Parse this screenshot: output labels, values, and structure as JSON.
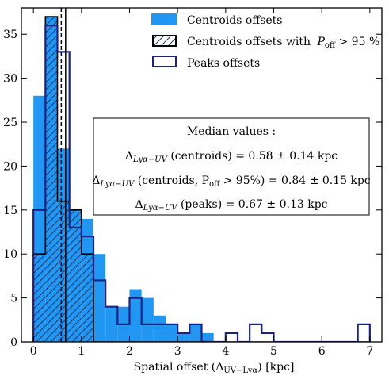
{
  "chart_data": {
    "type": "bar",
    "xlabel": "Spatial offset (Δ",
    "xlabel_sub": "UV−Lyα",
    "xlabel_tail": ") [kpc]",
    "ylabel": "",
    "xlim": [
      -0.25,
      7.25
    ],
    "ylim": [
      0,
      38
    ],
    "xticks": [
      0,
      1,
      2,
      3,
      4,
      5,
      6,
      7
    ],
    "yticks": [
      0,
      5,
      10,
      15,
      20,
      25,
      30,
      35
    ],
    "bin_width": 0.25,
    "bin_starts": [
      0,
      0.25,
      0.5,
      0.75,
      1.0,
      1.25,
      1.5,
      1.75,
      2.0,
      2.25,
      2.5,
      2.75,
      3.0,
      3.25,
      3.5,
      3.75,
      4.0,
      4.25,
      4.5,
      4.75,
      5.0,
      5.25,
      5.5,
      5.75,
      6.0,
      6.25,
      6.5,
      6.75
    ],
    "series": [
      {
        "name": "Centroids offsets",
        "style": "filled",
        "color": "#2196f3",
        "values": [
          28,
          37,
          22,
          15,
          14,
          10,
          4,
          4,
          6,
          5,
          3,
          2,
          1,
          2,
          1,
          0,
          0,
          0,
          0,
          0,
          0,
          0,
          0,
          0,
          0,
          0,
          0,
          0
        ]
      },
      {
        "name": "Centroids offsets with",
        "name_math": "P",
        "name_sub": "off",
        "name_tail": " > 95 %",
        "style": "hatched",
        "color": "#000000",
        "values": [
          10,
          37,
          16,
          15,
          10,
          0,
          0,
          0,
          0,
          0,
          0,
          0,
          0,
          0,
          0,
          0,
          0,
          0,
          0,
          0,
          0,
          0,
          0,
          0,
          0,
          0,
          0,
          0
        ]
      },
      {
        "name": "Peaks offsets",
        "style": "step",
        "color": "#1a237e",
        "values": [
          15,
          36,
          33,
          13,
          12,
          7,
          4,
          2,
          5,
          2,
          2,
          2,
          1,
          2,
          0,
          0,
          1,
          0,
          2,
          1,
          0,
          0,
          0,
          0,
          0,
          0,
          0,
          2
        ]
      }
    ],
    "vlines": [
      {
        "x": 0.58,
        "style": "dashed",
        "color": "#000000"
      },
      {
        "x": 0.67,
        "style": "solid",
        "color": "#000000"
      }
    ],
    "legend_position": "top-right",
    "annotation": {
      "title": "Median values  :",
      "lines": [
        {
          "delta": "Δ",
          "sub": "Lyα−UV",
          "text": " (centroids) = 0.58 ± 0.14 kpc"
        },
        {
          "delta": "Δ",
          "sub": "Lyα−UV",
          "text": " (centroids, P",
          "sub2": "off",
          "text2": " > 95%) = 0.84 ± 0.15 kpc"
        },
        {
          "delta": "Δ",
          "sub": "Lyα−UV",
          "text": " (peaks) = 0.67 ± 0.13 kpc"
        }
      ]
    }
  }
}
